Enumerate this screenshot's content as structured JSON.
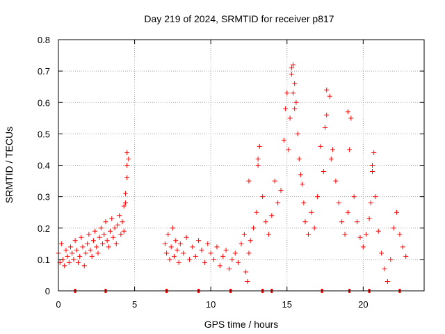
{
  "chart_data": {
    "type": "scatter",
    "title": "Day 219 of 2024, SRMTID for receiver p817",
    "xlabel": "GPS time / hours",
    "ylabel": "SRMTID / TECUs",
    "xlim": [
      0,
      24
    ],
    "ylim": [
      0,
      0.8
    ],
    "xticks": [
      0,
      5,
      10,
      15,
      20
    ],
    "yticks": [
      0,
      0.1,
      0.2,
      0.3,
      0.4,
      0.5,
      0.6,
      0.7,
      0.8
    ],
    "xtick_labels": [
      "0",
      "5",
      "10",
      "15",
      "20"
    ],
    "ytick_labels": [
      "0",
      "0.1",
      "0.2",
      "0.3",
      "0.4",
      "0.5",
      "0.6",
      "0.7",
      "0.8"
    ],
    "grid": true,
    "marker": "+",
    "color": "#ff0000",
    "series": [
      {
        "name": "SRMTID",
        "x": [
          0.0,
          0.1,
          0.2,
          0.3,
          0.4,
          0.5,
          0.6,
          0.7,
          0.8,
          0.9,
          1.0,
          1.1,
          1.2,
          1.3,
          1.4,
          1.5,
          1.6,
          1.7,
          1.8,
          1.9,
          2.0,
          2.1,
          2.2,
          2.3,
          2.4,
          2.5,
          2.6,
          2.7,
          2.8,
          2.9,
          3.0,
          3.1,
          3.2,
          3.3,
          3.4,
          3.5,
          3.6,
          3.7,
          3.8,
          3.9,
          4.0,
          4.1,
          4.2,
          4.3,
          4.4,
          4.5,
          4.6,
          4.5,
          4.4,
          4.3,
          7.0,
          7.1,
          7.2,
          7.3,
          7.4,
          7.5,
          7.6,
          7.7,
          7.8,
          7.9,
          8.0,
          8.2,
          8.4,
          8.6,
          8.8,
          9.0,
          9.2,
          9.4,
          9.6,
          9.8,
          10.0,
          10.2,
          10.4,
          10.6,
          10.8,
          11.0,
          11.2,
          11.4,
          11.6,
          11.8,
          12.0,
          12.2,
          12.3,
          12.4,
          12.5,
          12.6,
          12.8,
          13.0,
          13.1,
          13.2,
          13.4,
          13.6,
          13.8,
          14.0,
          14.2,
          14.4,
          14.6,
          14.8,
          14.9,
          15.0,
          15.1,
          15.2,
          15.3,
          15.4,
          15.5,
          15.6,
          15.7,
          15.8,
          15.9,
          16.0,
          16.1,
          16.2,
          16.4,
          16.6,
          16.8,
          17.0,
          17.2,
          17.4,
          17.5,
          17.6,
          17.8,
          18.0,
          18.2,
          18.4,
          18.6,
          18.8,
          19.0,
          19.1,
          19.2,
          19.4,
          19.6,
          19.8,
          20.0,
          20.2,
          20.4,
          20.5,
          20.6,
          20.7,
          20.8,
          21.0,
          21.2,
          21.4,
          21.6,
          21.8,
          22.0,
          22.2,
          22.4,
          22.6,
          22.8,
          15.3,
          15.4,
          15.5,
          17.6,
          17.9,
          19.0,
          20.6,
          13.1,
          4.5,
          12.5
        ],
        "y": [
          0.12,
          0.09,
          0.15,
          0.1,
          0.08,
          0.13,
          0.11,
          0.09,
          0.14,
          0.12,
          0.1,
          0.16,
          0.13,
          0.09,
          0.11,
          0.17,
          0.14,
          0.08,
          0.12,
          0.15,
          0.18,
          0.13,
          0.11,
          0.16,
          0.19,
          0.14,
          0.12,
          0.17,
          0.2,
          0.15,
          0.18,
          0.22,
          0.16,
          0.14,
          0.19,
          0.23,
          0.17,
          0.2,
          0.15,
          0.21,
          0.24,
          0.18,
          0.22,
          0.27,
          0.31,
          0.36,
          0.42,
          0.44,
          0.28,
          0.19,
          0.15,
          0.12,
          0.18,
          0.1,
          0.14,
          0.2,
          0.11,
          0.16,
          0.13,
          0.09,
          0.15,
          0.12,
          0.17,
          0.1,
          0.14,
          0.11,
          0.16,
          0.13,
          0.09,
          0.15,
          0.12,
          0.1,
          0.14,
          0.08,
          0.11,
          0.13,
          0.07,
          0.1,
          0.12,
          0.09,
          0.15,
          0.18,
          0.06,
          0.03,
          0.12,
          0.16,
          0.2,
          0.25,
          0.4,
          0.46,
          0.3,
          0.22,
          0.18,
          0.24,
          0.35,
          0.28,
          0.32,
          0.48,
          0.58,
          0.63,
          0.45,
          0.55,
          0.69,
          0.72,
          0.66,
          0.6,
          0.5,
          0.42,
          0.37,
          0.34,
          0.28,
          0.22,
          0.18,
          0.25,
          0.2,
          0.3,
          0.46,
          0.38,
          0.52,
          0.56,
          0.62,
          0.45,
          0.35,
          0.28,
          0.22,
          0.18,
          0.25,
          0.45,
          0.55,
          0.3,
          0.22,
          0.17,
          0.14,
          0.18,
          0.23,
          0.28,
          0.38,
          0.44,
          0.3,
          0.19,
          0.12,
          0.07,
          0.03,
          0.1,
          0.2,
          0.25,
          0.18,
          0.14,
          0.11,
          0.71,
          0.63,
          0.58,
          0.64,
          0.42,
          0.57,
          0.4,
          0.42,
          0.4,
          0.35
        ]
      }
    ],
    "baseline_markers_x": [
      1.1,
      3.1,
      7.1,
      9.2,
      11.3,
      13.4,
      14.0,
      17.3,
      19.1,
      20.4,
      22.4
    ]
  }
}
